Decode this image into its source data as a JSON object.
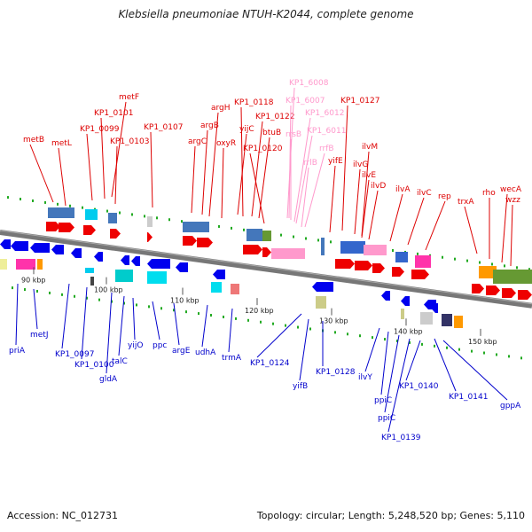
{
  "title": "Klebsiella pneumoniae NTUH-K2044, complete genome",
  "accession": "Accession: NC_012731",
  "stats": "Topology: circular; Length: 5,248,520 bp; Genes: 5,110",
  "colors": {
    "forward_label": "#dd0000",
    "reverse_label": "#0000cc",
    "rna_label": "#ff99cc",
    "backbone": "#777777",
    "dots": "#22aa22"
  },
  "kbp_ticks": [
    "90 kbp",
    "100 kbp",
    "110 kbp",
    "120 kbp",
    "130 kbp",
    "140 kbp",
    "150 kbp"
  ],
  "forward_genes": [
    "metB",
    "metL",
    "metF",
    "KP1_0101",
    "KP1_0099",
    "KP1_0103",
    "KP1_0107",
    "argC",
    "argB",
    "argH",
    "oxyR",
    "yijC",
    "KP1_0118",
    "KP1_0122",
    "btuB",
    "KP1_0120",
    "KP1_0127",
    "yifE",
    "ilvG",
    "ilvM",
    "ilvE",
    "ilvD",
    "ilvA",
    "ilvC",
    "rep",
    "trxA",
    "rho",
    "wecA",
    "wzz"
  ],
  "rna_genes": [
    "KP1_6008",
    "KP1_6007",
    "rrsB",
    "KP1_6012",
    "KP1_6011",
    "rrlB",
    "rrfB"
  ],
  "reverse_genes": [
    "priA",
    "metJ",
    "KP1_0097",
    "KP1_0100",
    "gldA",
    "talC",
    "yijO",
    "ppc",
    "argE",
    "udhA",
    "trmA",
    "KP1_0124",
    "yifB",
    "KP1_0128",
    "ilvY",
    "ppiC",
    "ppiC",
    "KP1_0139",
    "KP1_0140",
    "KP1_0141",
    "gppA"
  ]
}
